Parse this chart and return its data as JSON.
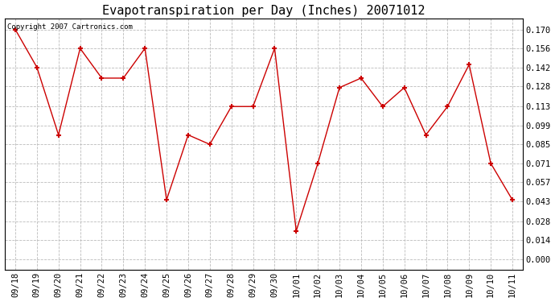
{
  "title": "Evapotranspiration per Day (Inches) 20071012",
  "copyright_text": "Copyright 2007 Cartronics.com",
  "x_labels": [
    "09/18",
    "09/19",
    "09/20",
    "09/21",
    "09/22",
    "09/23",
    "09/24",
    "09/25",
    "09/26",
    "09/27",
    "09/28",
    "09/29",
    "09/30",
    "10/01",
    "10/02",
    "10/03",
    "10/04",
    "10/05",
    "10/06",
    "10/07",
    "10/08",
    "10/09",
    "10/10",
    "10/11"
  ],
  "y_values": [
    0.17,
    0.142,
    0.092,
    0.156,
    0.134,
    0.134,
    0.156,
    0.044,
    0.092,
    0.085,
    0.113,
    0.113,
    0.156,
    0.021,
    0.071,
    0.127,
    0.134,
    0.113,
    0.127,
    0.092,
    0.113,
    0.144,
    0.071,
    0.044
  ],
  "line_color": "#cc0000",
  "marker": "+",
  "marker_size": 5,
  "marker_color": "#cc0000",
  "bg_color": "#ffffff",
  "grid_color": "#bbbbbb",
  "yticks": [
    0.0,
    0.014,
    0.028,
    0.043,
    0.057,
    0.071,
    0.085,
    0.099,
    0.113,
    0.128,
    0.142,
    0.156,
    0.17
  ],
  "ylim": [
    -0.008,
    0.178
  ],
  "title_fontsize": 11,
  "tick_fontsize": 7.5,
  "copyright_fontsize": 6.5
}
